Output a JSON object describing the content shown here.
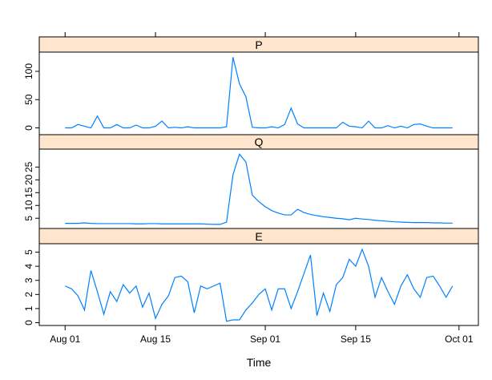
{
  "chart_data": {
    "type": "line",
    "xlabel": "Time",
    "x_ticks": [
      {
        "date": "2011-08-01",
        "label": "Aug 01"
      },
      {
        "date": "2011-08-15",
        "label": "Aug 15"
      },
      {
        "date": "2011-09-01",
        "label": "Sep 01"
      },
      {
        "date": "2011-09-15",
        "label": "Sep 15"
      },
      {
        "date": "2011-10-01",
        "label": "Oct 01"
      }
    ],
    "xlim": [
      "2011-07-28",
      "2011-10-04"
    ],
    "colors": {
      "line": "#0080ff",
      "strip": "#ffe5cc",
      "frame": "#000000"
    },
    "panels": [
      {
        "name": "P",
        "ylim": [
          -12,
          134
        ],
        "y_ticks": [
          0,
          50,
          100
        ],
        "x": [
          "2011-08-01",
          "2011-08-02",
          "2011-08-03",
          "2011-08-04",
          "2011-08-05",
          "2011-08-06",
          "2011-08-07",
          "2011-08-08",
          "2011-08-09",
          "2011-08-10",
          "2011-08-11",
          "2011-08-12",
          "2011-08-13",
          "2011-08-14",
          "2011-08-15",
          "2011-08-16",
          "2011-08-17",
          "2011-08-18",
          "2011-08-19",
          "2011-08-20",
          "2011-08-21",
          "2011-08-22",
          "2011-08-23",
          "2011-08-24",
          "2011-08-25",
          "2011-08-26",
          "2011-08-27",
          "2011-08-28",
          "2011-08-29",
          "2011-08-30",
          "2011-08-31",
          "2011-09-01",
          "2011-09-02",
          "2011-09-03",
          "2011-09-04",
          "2011-09-05",
          "2011-09-06",
          "2011-09-07",
          "2011-09-08",
          "2011-09-09",
          "2011-09-10",
          "2011-09-11",
          "2011-09-12",
          "2011-09-13",
          "2011-09-14",
          "2011-09-15",
          "2011-09-16",
          "2011-09-17",
          "2011-09-18",
          "2011-09-19",
          "2011-09-20",
          "2011-09-21",
          "2011-09-22",
          "2011-09-23",
          "2011-09-24",
          "2011-09-25",
          "2011-09-26",
          "2011-09-27",
          "2011-09-28",
          "2011-09-29",
          "2011-09-30"
        ],
        "values": [
          0,
          0,
          6,
          3,
          0,
          21,
          0,
          0,
          6,
          0,
          0,
          5,
          0,
          0,
          3,
          12,
          0,
          1,
          0,
          2,
          0,
          0,
          0,
          0,
          0,
          2,
          125,
          78,
          55,
          1,
          0,
          0,
          2,
          0,
          6,
          35,
          7,
          0,
          0,
          0,
          0,
          0,
          0,
          10,
          3,
          2,
          0,
          12,
          0,
          0,
          4,
          0,
          3,
          0,
          6,
          7,
          3,
          0,
          0,
          0,
          0
        ]
      },
      {
        "name": "Q",
        "ylim": [
          1,
          32
        ],
        "y_ticks": [
          5,
          10,
          15,
          20,
          25
        ],
        "x": [
          "2011-08-01",
          "2011-08-02",
          "2011-08-03",
          "2011-08-04",
          "2011-08-05",
          "2011-08-06",
          "2011-08-07",
          "2011-08-08",
          "2011-08-09",
          "2011-08-10",
          "2011-08-11",
          "2011-08-12",
          "2011-08-13",
          "2011-08-14",
          "2011-08-15",
          "2011-08-16",
          "2011-08-17",
          "2011-08-18",
          "2011-08-19",
          "2011-08-20",
          "2011-08-21",
          "2011-08-22",
          "2011-08-23",
          "2011-08-24",
          "2011-08-25",
          "2011-08-26",
          "2011-08-27",
          "2011-08-28",
          "2011-08-29",
          "2011-08-30",
          "2011-08-31",
          "2011-09-01",
          "2011-09-02",
          "2011-09-03",
          "2011-09-04",
          "2011-09-05",
          "2011-09-06",
          "2011-09-07",
          "2011-09-08",
          "2011-09-09",
          "2011-09-10",
          "2011-09-11",
          "2011-09-12",
          "2011-09-13",
          "2011-09-14",
          "2011-09-15",
          "2011-09-16",
          "2011-09-17",
          "2011-09-18",
          "2011-09-19",
          "2011-09-20",
          "2011-09-21",
          "2011-09-22",
          "2011-09-23",
          "2011-09-24",
          "2011-09-25",
          "2011-09-26",
          "2011-09-27",
          "2011-09-28",
          "2011-09-29",
          "2011-09-30"
        ],
        "values": [
          3.0,
          3.0,
          3.0,
          3.2,
          3.0,
          2.9,
          2.9,
          2.9,
          2.9,
          2.9,
          2.9,
          2.8,
          2.8,
          2.9,
          2.9,
          2.8,
          2.8,
          2.8,
          2.8,
          2.8,
          2.8,
          2.8,
          2.7,
          2.6,
          2.6,
          3.5,
          22.0,
          30.0,
          27.0,
          14.0,
          11.5,
          9.5,
          8.0,
          7.0,
          6.3,
          6.3,
          8.5,
          7.2,
          6.5,
          6.0,
          5.6,
          5.3,
          5.0,
          4.8,
          4.4,
          5.0,
          4.7,
          4.5,
          4.2,
          4.0,
          3.8,
          3.6,
          3.5,
          3.4,
          3.3,
          3.3,
          3.3,
          3.2,
          3.2,
          3.1,
          3.1
        ]
      },
      {
        "name": "E",
        "ylim": [
          -0.2,
          5.6
        ],
        "y_ticks": [
          0,
          1,
          2,
          3,
          4,
          5
        ],
        "x": [
          "2011-08-01",
          "2011-08-02",
          "2011-08-03",
          "2011-08-04",
          "2011-08-05",
          "2011-08-06",
          "2011-08-07",
          "2011-08-08",
          "2011-08-09",
          "2011-08-10",
          "2011-08-11",
          "2011-08-12",
          "2011-08-13",
          "2011-08-14",
          "2011-08-15",
          "2011-08-16",
          "2011-08-17",
          "2011-08-18",
          "2011-08-19",
          "2011-08-20",
          "2011-08-21",
          "2011-08-22",
          "2011-08-23",
          "2011-08-24",
          "2011-08-25",
          "2011-08-26",
          "2011-08-27",
          "2011-08-28",
          "2011-08-29",
          "2011-08-30",
          "2011-08-31",
          "2011-09-01",
          "2011-09-02",
          "2011-09-03",
          "2011-09-04",
          "2011-09-05",
          "2011-09-06",
          "2011-09-07",
          "2011-09-08",
          "2011-09-09",
          "2011-09-10",
          "2011-09-11",
          "2011-09-12",
          "2011-09-13",
          "2011-09-14",
          "2011-09-15",
          "2011-09-16",
          "2011-09-17",
          "2011-09-18",
          "2011-09-19",
          "2011-09-20",
          "2011-09-21",
          "2011-09-22",
          "2011-09-23",
          "2011-09-24",
          "2011-09-25",
          "2011-09-26",
          "2011-09-27",
          "2011-09-28",
          "2011-09-29",
          "2011-09-30"
        ],
        "values": [
          2.6,
          2.4,
          1.9,
          0.9,
          3.7,
          2.2,
          0.6,
          2.2,
          1.5,
          2.7,
          2.1,
          2.6,
          1.1,
          2.1,
          0.3,
          1.3,
          1.9,
          3.2,
          3.3,
          2.9,
          0.7,
          2.6,
          2.4,
          2.6,
          2.8,
          0.1,
          0.2,
          0.2,
          0.9,
          1.4,
          2.0,
          2.4,
          0.9,
          2.4,
          2.4,
          1.0,
          2.2,
          3.5,
          4.8,
          0.5,
          2.1,
          0.8,
          2.7,
          3.2,
          4.5,
          4.0,
          5.2,
          4.0,
          1.8,
          3.2,
          2.2,
          1.3,
          2.6,
          3.4,
          2.4,
          1.8,
          3.2,
          3.3,
          2.6,
          1.8,
          2.6
        ]
      }
    ]
  }
}
